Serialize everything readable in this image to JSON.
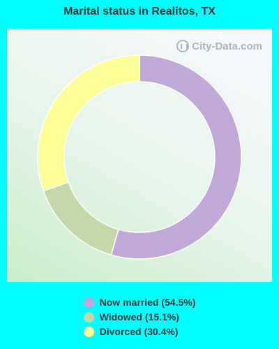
{
  "title": "Marital status in Realitos, TX",
  "watermark": "City-Data.com",
  "chart_data": {
    "type": "pie",
    "style": "donut",
    "title": "Marital status in Realitos, TX",
    "slices": [
      {
        "label": "Now married (54.5%)",
        "value": 54.5,
        "color": "#c0a8d8"
      },
      {
        "label": "Widowed (15.1%)",
        "value": 15.1,
        "color": "#c5d8a8"
      },
      {
        "label": "Divorced (30.4%)",
        "value": 30.4,
        "color": "#ffff99"
      }
    ],
    "legend_position": "bottom"
  }
}
